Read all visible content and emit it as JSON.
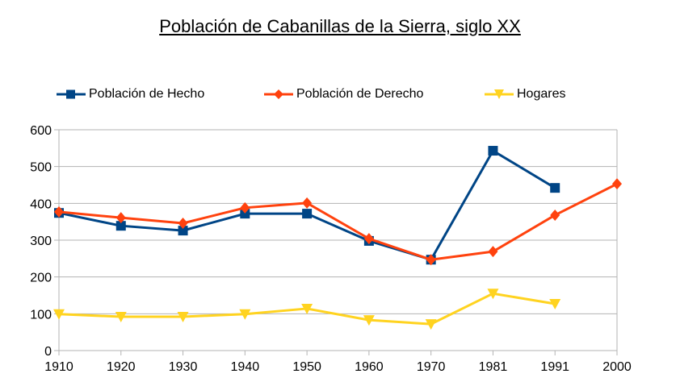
{
  "chart_data": {
    "type": "line",
    "title": "Población de Cabanillas de la Sierra, siglo XX",
    "xlabel": "",
    "ylabel": "",
    "categories": [
      "1910",
      "1920",
      "1930",
      "1940",
      "1950",
      "1960",
      "1970",
      "1981",
      "1991",
      "2000"
    ],
    "ylim": [
      0,
      600
    ],
    "yticks": [
      "0",
      "100",
      "200",
      "300",
      "400",
      "500",
      "600"
    ],
    "grid": true,
    "legend_position": "top",
    "series": [
      {
        "name": "Población de Hecho",
        "color": "#004586",
        "marker": "square",
        "values": [
          374,
          339,
          326,
          372,
          372,
          298,
          247,
          543,
          442,
          null
        ]
      },
      {
        "name": "Población de Derecho",
        "color": "#ff420e",
        "marker": "diamond",
        "values": [
          377,
          361,
          346,
          388,
          401,
          304,
          247,
          269,
          368,
          453
        ]
      },
      {
        "name": "Hogares",
        "color": "#ffd320",
        "marker": "triangle-down",
        "values": [
          99,
          92,
          92,
          99,
          114,
          83,
          72,
          155,
          127,
          null
        ]
      }
    ]
  }
}
